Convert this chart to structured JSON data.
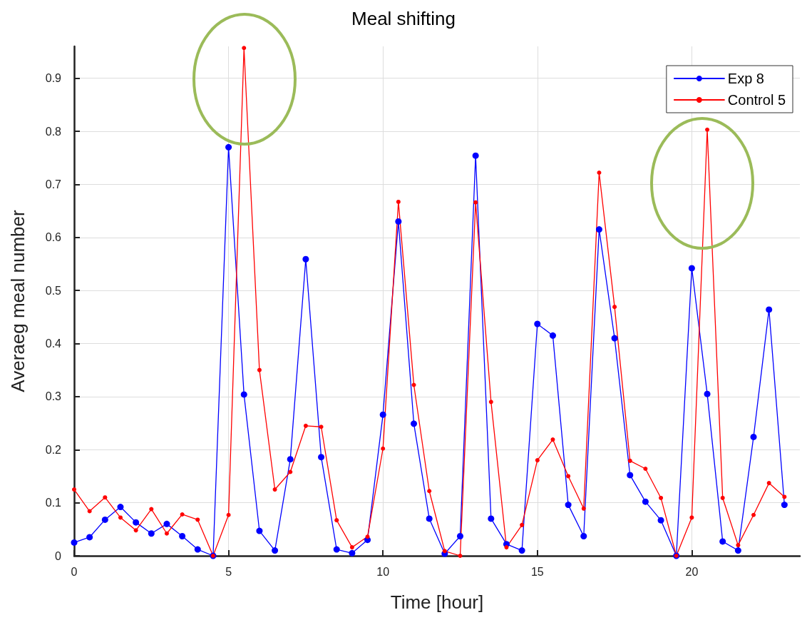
{
  "chart_data": {
    "type": "line",
    "title": "Meal shifting",
    "xlabel": "Time [hour]",
    "ylabel": "Averaeg meal number",
    "x": [
      0,
      0.5,
      1,
      1.5,
      2,
      2.5,
      3,
      3.5,
      4,
      4.5,
      5,
      5.5,
      6,
      6.5,
      7,
      7.5,
      8,
      8.5,
      9,
      9.5,
      10,
      10.5,
      11,
      11.5,
      12,
      12.5,
      13,
      13.5,
      14,
      14.5,
      15,
      15.5,
      16,
      16.5,
      17,
      17.5,
      18,
      18.5,
      19,
      19.5,
      20,
      20.5,
      21,
      21.5,
      22,
      22.5,
      23
    ],
    "series": [
      {
        "name": "Exp 8",
        "color": "#0000ff",
        "values": [
          0.025,
          0.035,
          0.068,
          0.092,
          0.063,
          0.042,
          0.06,
          0.037,
          0.012,
          0,
          0.77,
          0.304,
          0.047,
          0.01,
          0.182,
          0.559,
          0.186,
          0.012,
          0.005,
          0.03,
          0.266,
          0.63,
          0.249,
          0.07,
          0.004,
          0.037,
          0.754,
          0.07,
          0.022,
          0.01,
          0.437,
          0.415,
          0.096,
          0.037,
          0.615,
          0.41,
          0.152,
          0.102,
          0.067,
          0,
          0.542,
          0.305,
          0.027,
          0.01,
          0.224,
          0.464,
          0.096
        ]
      },
      {
        "name": "Control 5",
        "color": "#ff0000",
        "values": [
          0.125,
          0.084,
          0.11,
          0.072,
          0.048,
          0.088,
          0.042,
          0.078,
          0.068,
          0,
          0.077,
          0.957,
          0.35,
          0.125,
          0.158,
          0.245,
          0.243,
          0.067,
          0.016,
          0.036,
          0.202,
          0.667,
          0.322,
          0.122,
          0.009,
          0,
          0.666,
          0.29,
          0.016,
          0.058,
          0.18,
          0.219,
          0.15,
          0.089,
          0.722,
          0.469,
          0.179,
          0.164,
          0.109,
          0,
          0.072,
          0.803,
          0.109,
          0.02,
          0.077,
          0.137,
          0.111
        ]
      }
    ],
    "xlim": [
      0,
      23.5
    ],
    "xticks": [
      0,
      5,
      10,
      15,
      20
    ],
    "ylim": [
      0,
      0.96
    ],
    "yticks": [
      0,
      0.1,
      0.2,
      0.3,
      0.4,
      0.5,
      0.6,
      0.7,
      0.8,
      0.9
    ],
    "grid": true,
    "legend": "top right",
    "marker": "circle",
    "line_style": "solid"
  }
}
